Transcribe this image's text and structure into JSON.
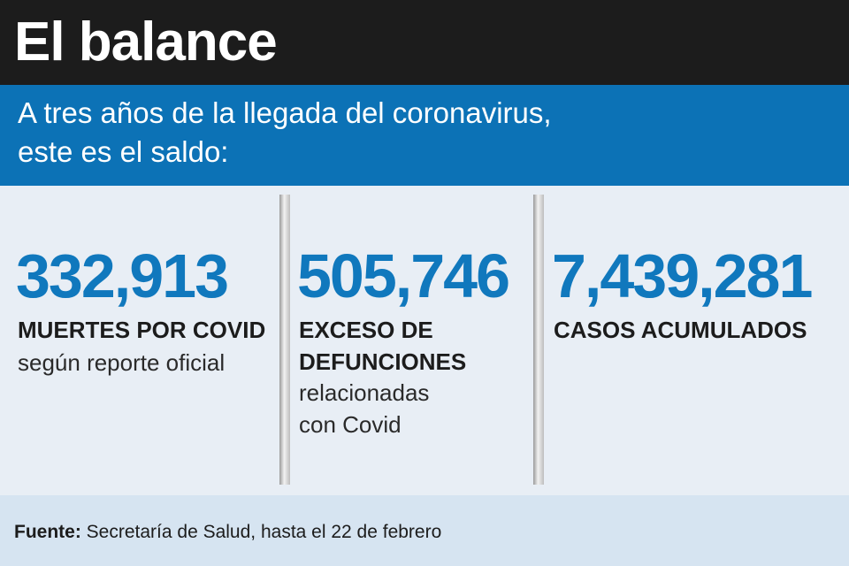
{
  "header": {
    "title": "El balance"
  },
  "banner": {
    "line1": "A tres años de la llegada del coronavirus,",
    "line2": "este es el saldo:"
  },
  "stats": [
    {
      "value": "332,913",
      "label_lines": [
        "MUERTES POR COVID"
      ],
      "sub_lines": [
        "según reporte oficial"
      ]
    },
    {
      "value": "505,746",
      "label_lines": [
        "EXCESO DE",
        "DEFUNCIONES"
      ],
      "sub_lines": [
        "relacionadas",
        "con Covid"
      ]
    },
    {
      "value": "7,439,281",
      "label_lines": [
        "CASOS ACUMULADOS"
      ],
      "sub_lines": []
    }
  ],
  "footer": {
    "source_label": "Fuente:",
    "source_text": "Secretaría de Salud, hasta el 22 de febrero"
  },
  "colors": {
    "header_bg": "#1c1c1c",
    "banner_bg": "#0c72b6",
    "number": "#1078bd",
    "panel_bg": "#e8eef5",
    "footer_bg": "#d6e4f1"
  }
}
